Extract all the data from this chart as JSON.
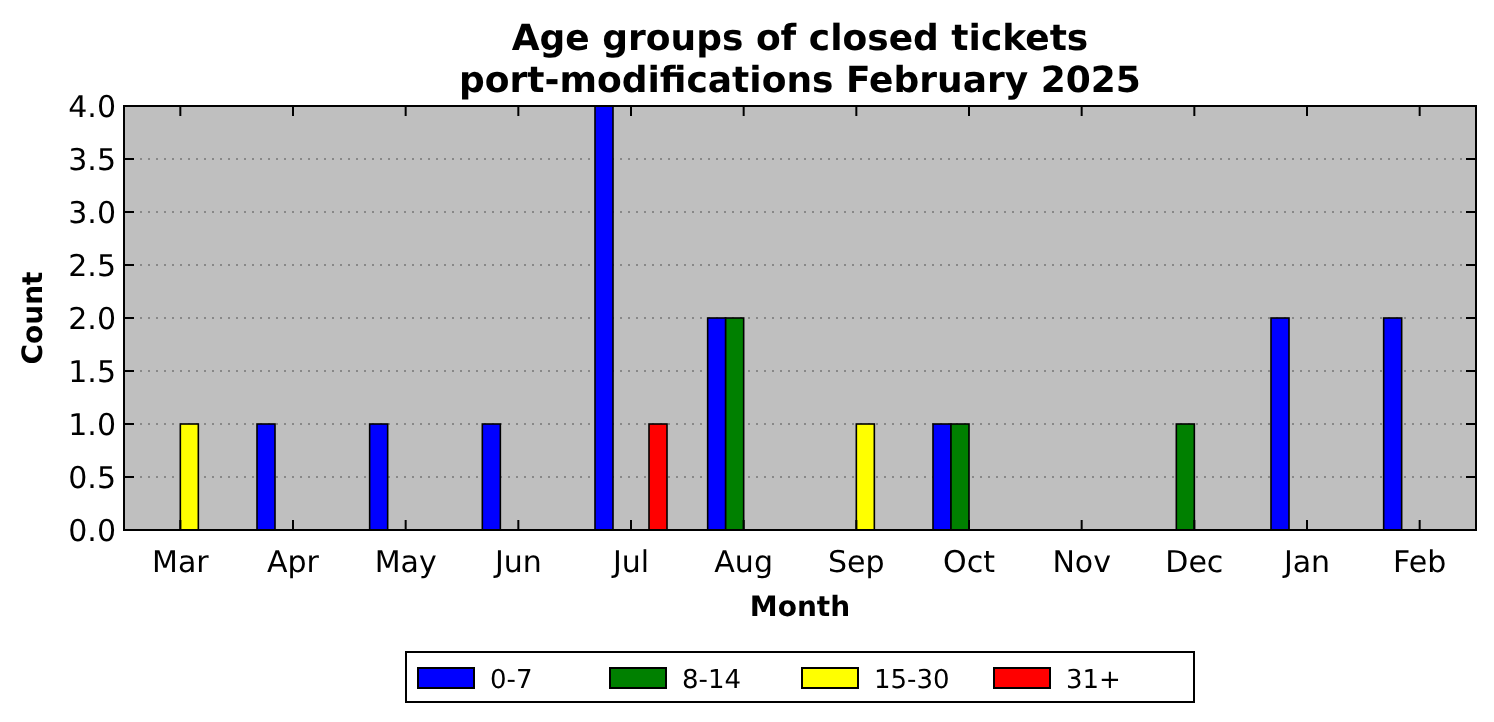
{
  "chart_data": {
    "type": "bar",
    "title": "Age groups of closed tickets\nport-modifications February 2025",
    "xlabel": "Month",
    "ylabel": "Count",
    "categories": [
      "Mar",
      "Apr",
      "May",
      "Jun",
      "Jul",
      "Aug",
      "Sep",
      "Oct",
      "Nov",
      "Dec",
      "Jan",
      "Feb"
    ],
    "series": [
      {
        "name": "0-7",
        "color": "#0000ff",
        "values": [
          0,
          1,
          1,
          1,
          4,
          2,
          0,
          1,
          0,
          0,
          2,
          2
        ]
      },
      {
        "name": "8-14",
        "color": "#008000",
        "values": [
          0,
          0,
          0,
          0,
          0,
          2,
          0,
          1,
          0,
          1,
          0,
          0
        ]
      },
      {
        "name": "15-30",
        "color": "#ffff00",
        "values": [
          1,
          0,
          0,
          0,
          0,
          0,
          1,
          0,
          0,
          0,
          0,
          0
        ]
      },
      {
        "name": "31+",
        "color": "#ff0000",
        "values": [
          0,
          0,
          0,
          0,
          1,
          0,
          0,
          0,
          0,
          0,
          0,
          0
        ]
      }
    ],
    "ylim": [
      0,
      4
    ],
    "yticks": [
      {
        "value": 0,
        "label": "0.0"
      },
      {
        "value": 0.5,
        "label": "0.5"
      },
      {
        "value": 1,
        "label": "1.0"
      },
      {
        "value": 1.5,
        "label": "1.5"
      },
      {
        "value": 2,
        "label": "2.0"
      },
      {
        "value": 2.5,
        "label": "2.5"
      },
      {
        "value": 3,
        "label": "3.0"
      },
      {
        "value": 3.5,
        "label": "3.5"
      },
      {
        "value": 4,
        "label": "4.0"
      }
    ],
    "grid": "y",
    "legend": "bottom"
  }
}
